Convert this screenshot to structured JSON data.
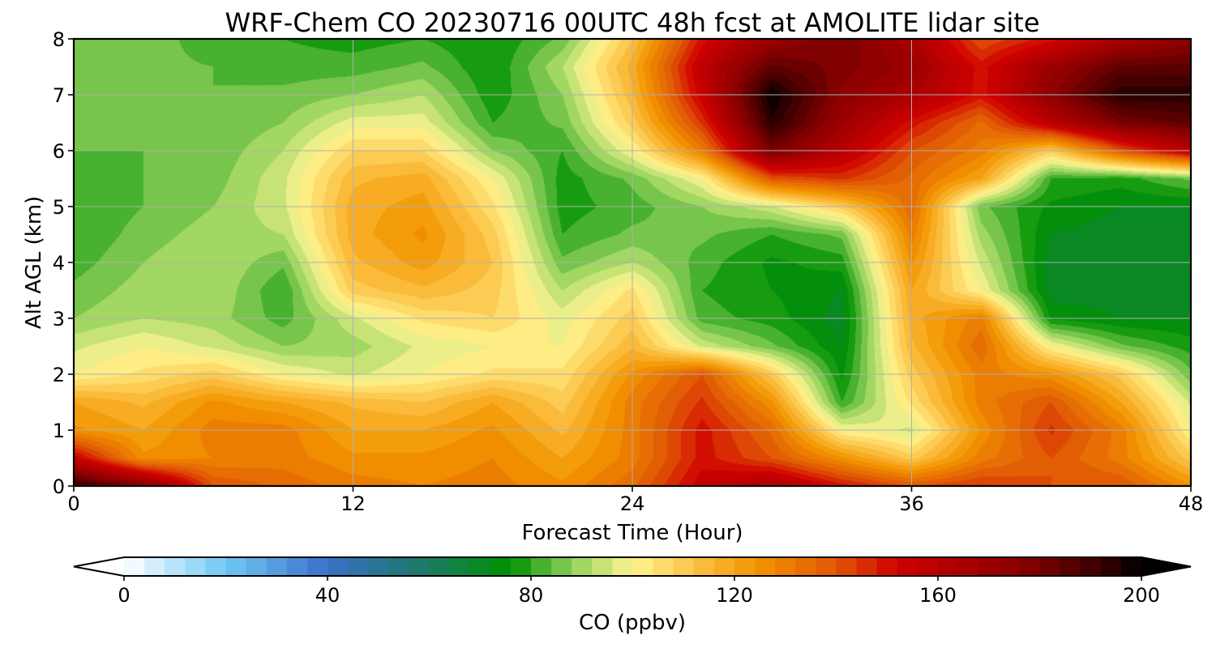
{
  "chart_data": {
    "type": "heatmap",
    "title": "WRF-Chem CO  20230716 00UTC 48h fcst at AMOLITE lidar site",
    "xlabel": "Forecast Time (Hour)",
    "ylabel": "Alt AGL (km)",
    "xlim": [
      0,
      48
    ],
    "ylim": [
      0,
      8
    ],
    "xticks": [
      "0",
      "12",
      "24",
      "36",
      "48"
    ],
    "yticks": [
      "0",
      "1",
      "2",
      "3",
      "4",
      "5",
      "6",
      "7",
      "8"
    ],
    "grid": true,
    "x": [
      0,
      3,
      6,
      9,
      12,
      15,
      18,
      21,
      24,
      27,
      30,
      33,
      36,
      39,
      42,
      45,
      48
    ],
    "y": [
      0,
      0.5,
      1,
      1.5,
      2,
      2.5,
      3,
      3.5,
      4,
      4.5,
      5,
      5.5,
      6,
      6.5,
      7,
      7.5,
      8
    ],
    "z": [
      [
        195,
        178,
        140,
        135,
        130,
        128,
        130,
        125,
        135,
        155,
        165,
        150,
        140,
        145,
        140,
        140,
        125
      ],
      [
        155,
        125,
        128,
        130,
        125,
        125,
        128,
        120,
        130,
        150,
        140,
        125,
        110,
        130,
        140,
        130,
        110
      ],
      [
        125,
        120,
        130,
        130,
        120,
        120,
        125,
        115,
        130,
        150,
        135,
        100,
        95,
        125,
        145,
        130,
        100
      ],
      [
        120,
        115,
        125,
        120,
        115,
        112,
        120,
        110,
        130,
        145,
        125,
        80,
        105,
        130,
        140,
        120,
        95
      ],
      [
        100,
        105,
        110,
        100,
        95,
        100,
        105,
        105,
        125,
        140,
        110,
        75,
        110,
        130,
        125,
        110,
        85
      ],
      [
        95,
        100,
        95,
        88,
        90,
        97,
        100,
        100,
        115,
        95,
        85,
        72,
        115,
        135,
        100,
        85,
        78
      ],
      [
        88,
        92,
        90,
        82,
        95,
        105,
        108,
        98,
        110,
        82,
        78,
        70,
        118,
        130,
        75,
        72,
        72
      ],
      [
        85,
        90,
        92,
        80,
        110,
        115,
        110,
        92,
        105,
        80,
        76,
        72,
        120,
        100,
        70,
        70,
        70
      ],
      [
        82,
        88,
        92,
        85,
        115,
        122,
        112,
        85,
        92,
        82,
        75,
        78,
        125,
        95,
        70,
        68,
        70
      ],
      [
        80,
        86,
        90,
        92,
        118,
        125,
        110,
        80,
        85,
        85,
        80,
        85,
        130,
        90,
        72,
        70,
        70
      ],
      [
        80,
        84,
        88,
        95,
        118,
        122,
        105,
        78,
        82,
        88,
        95,
        110,
        135,
        85,
        75,
        72,
        72
      ],
      [
        82,
        84,
        86,
        95,
        115,
        118,
        100,
        78,
        85,
        100,
        140,
        145,
        135,
        120,
        80,
        78,
        85
      ],
      [
        84,
        84,
        85,
        92,
        108,
        108,
        88,
        80,
        100,
        130,
        180,
        160,
        140,
        130,
        110,
        140,
        160
      ],
      [
        85,
        84,
        84,
        88,
        98,
        98,
        80,
        85,
        110,
        145,
        195,
        170,
        150,
        135,
        160,
        180,
        185
      ],
      [
        86,
        85,
        84,
        85,
        88,
        92,
        77,
        88,
        115,
        155,
        200,
        175,
        165,
        150,
        175,
        195,
        195
      ],
      [
        87,
        85,
        84,
        82,
        82,
        85,
        76,
        92,
        118,
        158,
        185,
        178,
        170,
        150,
        170,
        185,
        185
      ],
      [
        88,
        86,
        82,
        80,
        78,
        80,
        76,
        85,
        112,
        150,
        170,
        180,
        165,
        140,
        150,
        165,
        175
      ]
    ],
    "colorbar": {
      "label": "CO  (ppbv)",
      "vmin": 0,
      "vmax": 200,
      "step": 4,
      "extend": "both",
      "ticks": [
        "0",
        "40",
        "80",
        "120",
        "160",
        "200"
      ],
      "colormap": [
        [
          0,
          "#ffffff"
        ],
        [
          20,
          "#6fc8f5"
        ],
        [
          40,
          "#3870c8"
        ],
        [
          60,
          "#1a7a60"
        ],
        [
          76,
          "#009100"
        ],
        [
          88,
          "#8fd15a"
        ],
        [
          100,
          "#fff592"
        ],
        [
          112,
          "#fbc246"
        ],
        [
          124,
          "#f29500"
        ],
        [
          140,
          "#e05606"
        ],
        [
          152,
          "#cf0000"
        ],
        [
          176,
          "#8a0000"
        ],
        [
          192,
          "#3a0000"
        ],
        [
          200,
          "#000000"
        ]
      ]
    }
  }
}
